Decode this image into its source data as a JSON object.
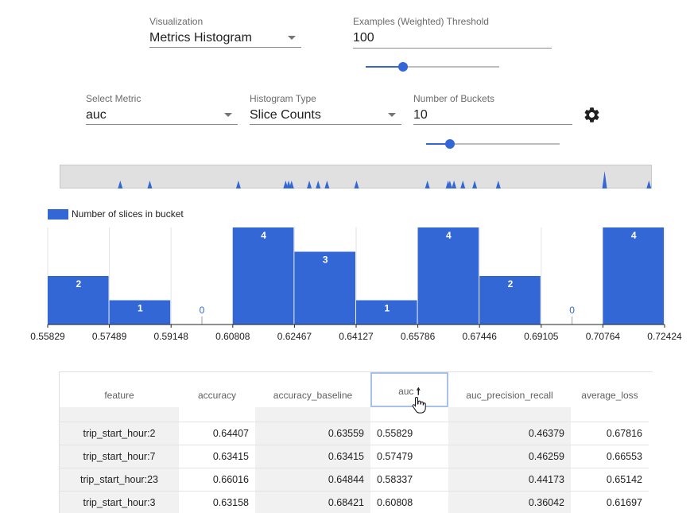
{
  "visualization": {
    "label": "Visualization",
    "value": "Metrics Histogram"
  },
  "threshold": {
    "label": "Examples (Weighted) Threshold",
    "value": "100",
    "slider_fraction": 0.28
  },
  "select_metric": {
    "label": "Select Metric",
    "value": "auc"
  },
  "histogram_type": {
    "label": "Histogram Type",
    "value": "Slice Counts"
  },
  "num_buckets": {
    "label": "Number of Buckets",
    "value": "10",
    "slider_fraction": 0.18
  },
  "icons": {
    "settings": "gear-icon",
    "dropdown": "chevron-down-icon",
    "sort": "arrow-up-icon",
    "cursor": "hand-pointer-icon"
  },
  "colors": {
    "accent": "#3367d6"
  },
  "overview_peaks": [
    0.1,
    0.15,
    0.3,
    0.38,
    0.385,
    0.39,
    0.42,
    0.435,
    0.45,
    0.5,
    0.62,
    0.655,
    0.658,
    0.665,
    0.68,
    0.7,
    0.74,
    0.92,
    0.995
  ],
  "chart_data": {
    "type": "bar",
    "legend": "Number of slices in bucket",
    "bucket_edges": [
      "0.55829",
      "0.57489",
      "0.59148",
      "0.60808",
      "0.62467",
      "0.64127",
      "0.65786",
      "0.67446",
      "0.69105",
      "0.70764",
      "0.72424"
    ],
    "values": [
      2,
      1,
      0,
      4,
      3,
      1,
      4,
      2,
      0,
      4
    ],
    "ylim": [
      0,
      4
    ]
  },
  "table": {
    "columns": [
      "feature",
      "accuracy",
      "accuracy_baseline",
      "auc",
      "auc_precision_recall",
      "average_loss"
    ],
    "sorted_column": "auc",
    "rows": [
      [
        "trip_start_hour:2",
        "0.64407",
        "0.63559",
        "0.55829",
        "0.46379",
        "0.67816"
      ],
      [
        "trip_start_hour:7",
        "0.63415",
        "0.63415",
        "0.57479",
        "0.46259",
        "0.66553"
      ],
      [
        "trip_start_hour:23",
        "0.66016",
        "0.64844",
        "0.58337",
        "0.44173",
        "0.65142"
      ],
      [
        "trip_start_hour:3",
        "0.63158",
        "0.68421",
        "0.60808",
        "0.36042",
        "0.61697"
      ]
    ]
  }
}
